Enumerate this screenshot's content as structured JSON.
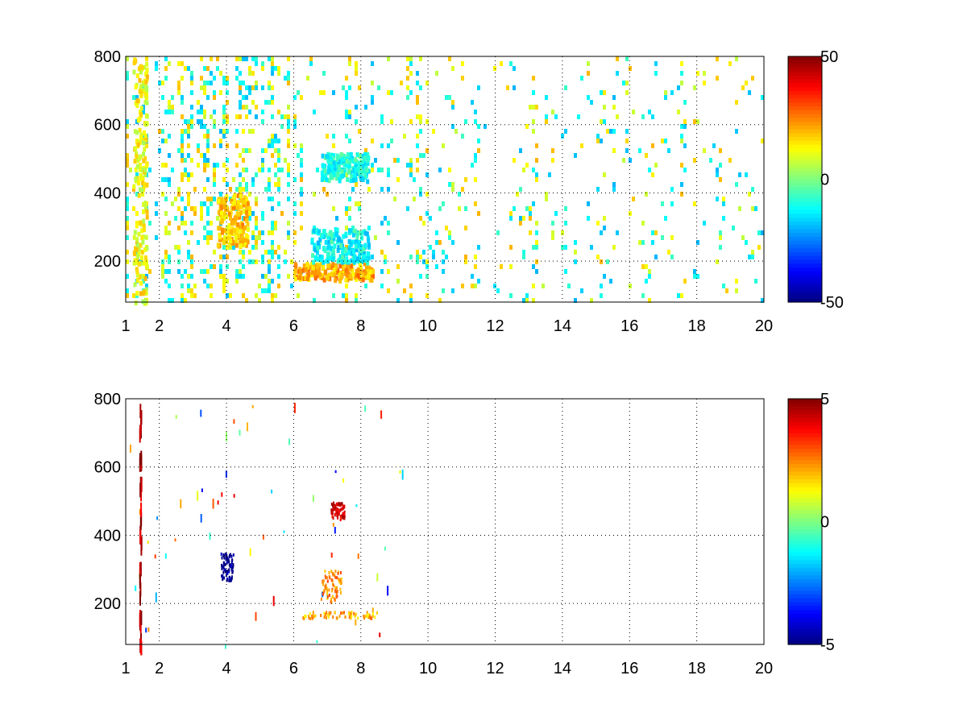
{
  "chart_data": [
    {
      "type": "heatmap",
      "xlim": [
        1,
        20
      ],
      "ylim": [
        80,
        800
      ],
      "x_ticks": [
        "1",
        "2",
        "4",
        "6",
        "8",
        "10",
        "12",
        "14",
        "16",
        "18",
        "20"
      ],
      "x_tick_values": [
        1,
        2,
        4,
        6,
        8,
        10,
        12,
        14,
        16,
        18,
        20
      ],
      "y_ticks": [
        "200",
        "400",
        "600",
        "800"
      ],
      "y_tick_values": [
        200,
        400,
        600,
        800
      ],
      "grid": true,
      "colormap": "jet",
      "colorbar": {
        "min": -50,
        "max": 50,
        "ticks": [
          "50",
          "0",
          "-50"
        ],
        "tick_values": [
          50,
          0,
          -50
        ]
      },
      "features": [
        {
          "x": [
            1.2,
            1.6
          ],
          "y": [
            80,
            800
          ],
          "value": 12,
          "kind": "vertical-band"
        },
        {
          "x": [
            3.7,
            4.6
          ],
          "y": [
            250,
            400
          ],
          "value": 18,
          "kind": "cluster"
        },
        {
          "x": [
            6.0,
            8.4
          ],
          "y": [
            150,
            200
          ],
          "value": 20,
          "kind": "horizontal-band"
        },
        {
          "x": [
            6.8,
            8.2
          ],
          "y": [
            440,
            520
          ],
          "value": -10,
          "kind": "cluster"
        },
        {
          "x": [
            6.5,
            8.2
          ],
          "y": [
            200,
            300
          ],
          "value": -12,
          "kind": "cluster"
        }
      ]
    },
    {
      "type": "heatmap",
      "xlim": [
        1,
        20
      ],
      "ylim": [
        80,
        800
      ],
      "x_ticks": [
        "1",
        "2",
        "4",
        "6",
        "8",
        "10",
        "12",
        "14",
        "16",
        "18",
        "20"
      ],
      "x_tick_values": [
        1,
        2,
        4,
        6,
        8,
        10,
        12,
        14,
        16,
        18,
        20
      ],
      "y_ticks": [
        "200",
        "400",
        "600",
        "800"
      ],
      "y_tick_values": [
        200,
        400,
        600,
        800
      ],
      "grid": true,
      "colormap": "jet",
      "colorbar": {
        "min": -5,
        "max": 5,
        "ticks": [
          "5",
          "0",
          "-5"
        ],
        "tick_values": [
          5,
          0,
          -5
        ]
      },
      "features": [
        {
          "x": [
            1.4,
            1.45
          ],
          "y": [
            80,
            800
          ],
          "value": 4.5,
          "kind": "vertical-line"
        },
        {
          "x": [
            3.8,
            4.2
          ],
          "y": [
            270,
            350
          ],
          "value": -5,
          "kind": "cluster"
        },
        {
          "x": [
            6.2,
            8.5
          ],
          "y": [
            160,
            180
          ],
          "value": 2,
          "kind": "horizontal-band"
        },
        {
          "x": [
            7.1,
            7.5
          ],
          "y": [
            450,
            500
          ],
          "value": 4,
          "kind": "cluster"
        },
        {
          "x": [
            6.8,
            7.4
          ],
          "y": [
            200,
            300
          ],
          "value": 2.5,
          "kind": "cluster"
        }
      ]
    }
  ]
}
